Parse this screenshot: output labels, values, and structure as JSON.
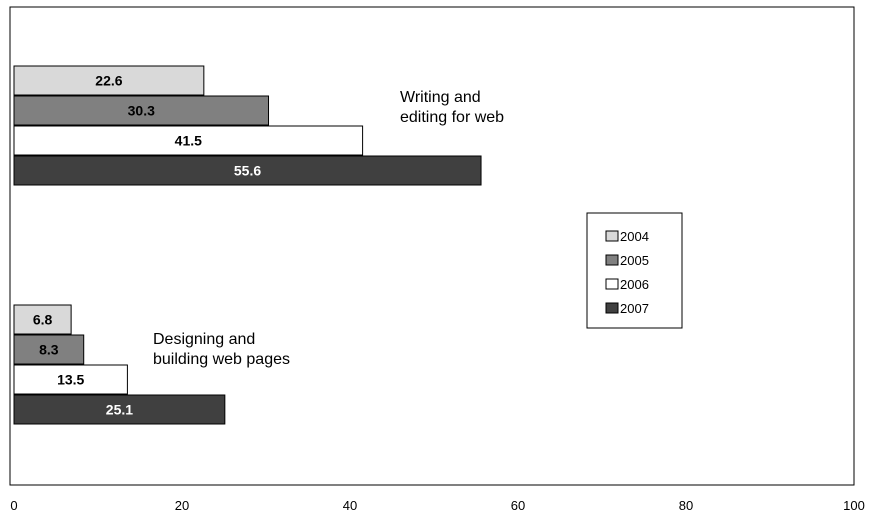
{
  "chart_data": {
    "type": "bar",
    "orientation": "horizontal",
    "categories": [
      "Writing and editing for web",
      "Designing and building web pages"
    ],
    "category_label_lines": [
      [
        "Writing and",
        "editing for web"
      ],
      [
        "Designing and",
        "building web pages"
      ]
    ],
    "series": [
      {
        "name": "2004",
        "values": [
          22.6,
          6.8
        ],
        "color": "#d9d9d9",
        "label_color": "#000000"
      },
      {
        "name": "2005",
        "values": [
          30.3,
          8.3
        ],
        "color": "#808080",
        "label_color": "#000000"
      },
      {
        "name": "2006",
        "values": [
          41.5,
          13.5
        ],
        "color": "#ffffff",
        "label_color": "#000000"
      },
      {
        "name": "2007",
        "values": [
          55.6,
          25.1
        ],
        "color": "#404040",
        "label_color": "#ffffff"
      }
    ],
    "xlim": [
      0,
      100
    ],
    "xticks": [
      0,
      20,
      40,
      60,
      80,
      100
    ],
    "title": "",
    "xlabel": "",
    "ylabel": "",
    "grid": false,
    "legend_position": "right"
  }
}
